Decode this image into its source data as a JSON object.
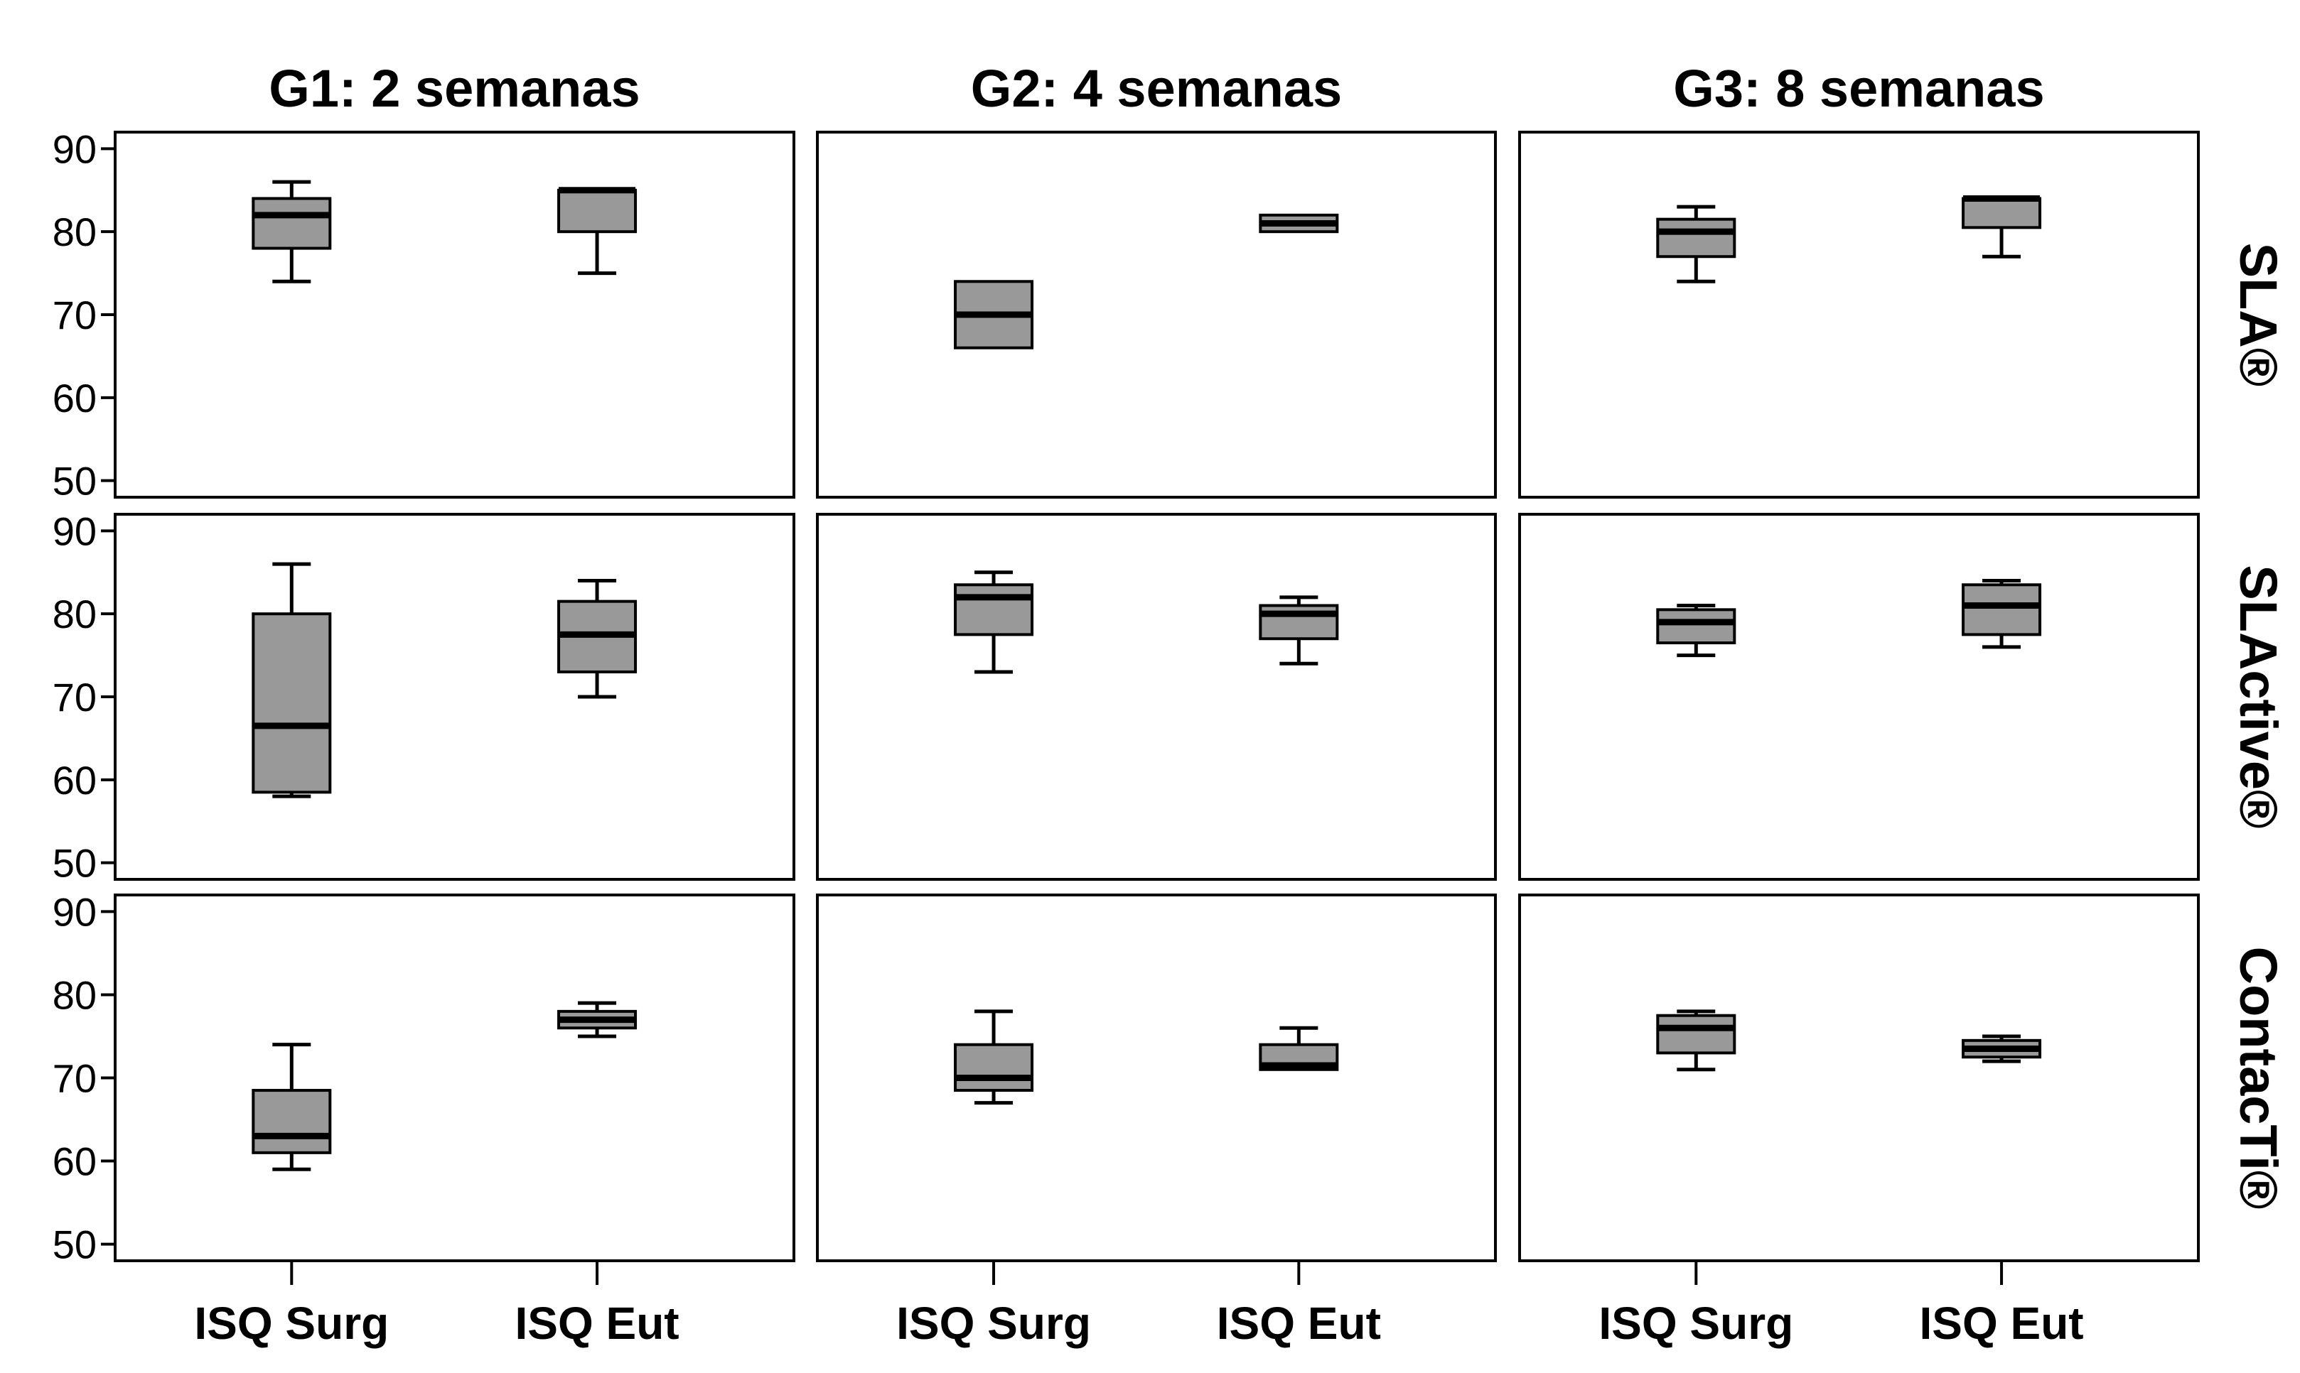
{
  "colors": {
    "box_fill": "#999999",
    "frame": "#000000",
    "background": "#ffffff"
  },
  "chart_data": {
    "type": "boxplot",
    "layout": "facet-grid",
    "column_titles": [
      "G1: 2 semanas",
      "G2: 4 semanas",
      "G3: 8 semanas"
    ],
    "row_titles": [
      "SLA®",
      "SLActive®",
      "ContacTi®"
    ],
    "categories": [
      "ISQ Surg",
      "ISQ Eut"
    ],
    "ylim": [
      48,
      92
    ],
    "yticks": [
      50,
      60,
      70,
      80,
      90
    ],
    "ytick_labels": [
      "50",
      "60",
      "70",
      "80",
      "90"
    ],
    "grid": false,
    "panels": [
      {
        "row": 0,
        "col": 0,
        "boxes": [
          {
            "category": "ISQ Surg",
            "min": 74,
            "q1": 78,
            "median": 82,
            "q3": 84,
            "max": 86
          },
          {
            "category": "ISQ Eut",
            "min": 75,
            "q1": 80,
            "median": 85,
            "q3": 85,
            "max": 85
          }
        ]
      },
      {
        "row": 0,
        "col": 1,
        "boxes": [
          {
            "category": "ISQ Surg",
            "min": 66,
            "q1": 66,
            "median": 70,
            "q3": 74,
            "max": 74
          },
          {
            "category": "ISQ Eut",
            "min": 80,
            "q1": 80,
            "median": 81,
            "q3": 82,
            "max": 82
          }
        ]
      },
      {
        "row": 0,
        "col": 2,
        "boxes": [
          {
            "category": "ISQ Surg",
            "min": 74,
            "q1": 77,
            "median": 80,
            "q3": 81.5,
            "max": 83
          },
          {
            "category": "ISQ Eut",
            "min": 77,
            "q1": 80.5,
            "median": 84,
            "q3": 84,
            "max": 84
          }
        ]
      },
      {
        "row": 1,
        "col": 0,
        "boxes": [
          {
            "category": "ISQ Surg",
            "min": 58,
            "q1": 58.5,
            "median": 66.5,
            "q3": 80,
            "max": 86
          },
          {
            "category": "ISQ Eut",
            "min": 70,
            "q1": 73,
            "median": 77.5,
            "q3": 81.5,
            "max": 84
          }
        ]
      },
      {
        "row": 1,
        "col": 1,
        "boxes": [
          {
            "category": "ISQ Surg",
            "min": 73,
            "q1": 77.5,
            "median": 82,
            "q3": 83.5,
            "max": 85
          },
          {
            "category": "ISQ Eut",
            "min": 74,
            "q1": 77,
            "median": 80,
            "q3": 81,
            "max": 82
          }
        ]
      },
      {
        "row": 1,
        "col": 2,
        "boxes": [
          {
            "category": "ISQ Surg",
            "min": 75,
            "q1": 76.5,
            "median": 79,
            "q3": 80.5,
            "max": 81
          },
          {
            "category": "ISQ Eut",
            "min": 76,
            "q1": 77.5,
            "median": 81,
            "q3": 83.5,
            "max": 84
          }
        ]
      },
      {
        "row": 2,
        "col": 0,
        "boxes": [
          {
            "category": "ISQ Surg",
            "min": 59,
            "q1": 61,
            "median": 63,
            "q3": 68.5,
            "max": 74
          },
          {
            "category": "ISQ Eut",
            "min": 75,
            "q1": 76,
            "median": 77,
            "q3": 78,
            "max": 79
          }
        ]
      },
      {
        "row": 2,
        "col": 1,
        "boxes": [
          {
            "category": "ISQ Surg",
            "min": 67,
            "q1": 68.5,
            "median": 70,
            "q3": 74,
            "max": 78
          },
          {
            "category": "ISQ Eut",
            "min": 71,
            "q1": 71,
            "median": 71.5,
            "q3": 74,
            "max": 76
          }
        ]
      },
      {
        "row": 2,
        "col": 2,
        "boxes": [
          {
            "category": "ISQ Surg",
            "min": 71,
            "q1": 73,
            "median": 76,
            "q3": 77.5,
            "max": 78
          },
          {
            "category": "ISQ Eut",
            "min": 72,
            "q1": 72.5,
            "median": 73.5,
            "q3": 74.5,
            "max": 75
          }
        ]
      }
    ]
  }
}
